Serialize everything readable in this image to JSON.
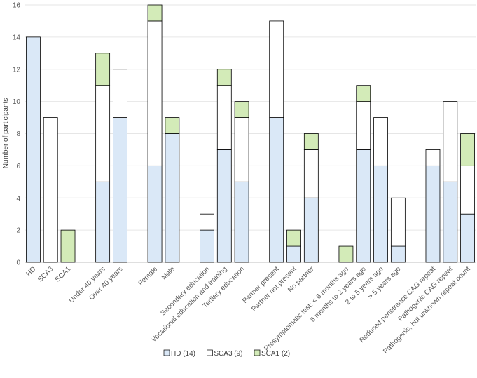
{
  "chart_data": {
    "type": "bar",
    "stacked": true,
    "ylabel": "Number of participants",
    "xlabel": "",
    "ylim": [
      0,
      16
    ],
    "yticks": [
      0,
      2,
      4,
      6,
      8,
      10,
      12,
      14,
      16
    ],
    "grid": true,
    "legend_position": "bottom",
    "groups": [
      [
        "HD",
        "SCA3",
        "SCA1"
      ],
      [
        "Under 40 years",
        "Over 40 years"
      ],
      [
        "Female",
        "Male"
      ],
      [
        "Secondary education",
        "Vocational education and training",
        "Tertiary education"
      ],
      [
        "Partner present",
        "Partner not present",
        "No partner"
      ],
      [
        "Presymptomatic test: < 6 months ago",
        "6 months to 2 years ago",
        "2 to 5 years ago",
        "> 5 years ago"
      ],
      [
        "Reduced penetrance CAG repeat",
        "Pathogenic CAG repeat",
        "Pathogenic, but unknown repeat count"
      ]
    ],
    "categories": [
      "HD",
      "SCA3",
      "SCA1",
      "Under 40 years",
      "Over 40 years",
      "Female",
      "Male",
      "Secondary education",
      "Vocational education and training",
      "Tertiary education",
      "Partner present",
      "Partner not present",
      "No partner",
      "Presymptomatic test: < 6 months ago",
      "6 months to 2 years ago",
      "2 to 5 years ago",
      "> 5 years ago",
      "Reduced penetrance CAG repeat",
      "Pathogenic CAG repeat",
      "Pathogenic, but unknown repeat count"
    ],
    "series": [
      {
        "name": "HD (14)",
        "color": "#dae8f7",
        "values": [
          14,
          0,
          0,
          5,
          9,
          6,
          8,
          2,
          7,
          5,
          9,
          1,
          4,
          0,
          7,
          6,
          1,
          6,
          5,
          3
        ]
      },
      {
        "name": "SCA3 (9)",
        "color": "#ffffff",
        "values": [
          0,
          9,
          0,
          6,
          3,
          9,
          0,
          1,
          4,
          4,
          6,
          0,
          3,
          0,
          3,
          3,
          3,
          1,
          5,
          3
        ]
      },
      {
        "name": "SCA1 (2)",
        "color": "#d3ebb8",
        "values": [
          0,
          0,
          2,
          2,
          0,
          1,
          1,
          0,
          1,
          1,
          0,
          1,
          1,
          1,
          1,
          0,
          0,
          0,
          0,
          2
        ]
      }
    ]
  }
}
